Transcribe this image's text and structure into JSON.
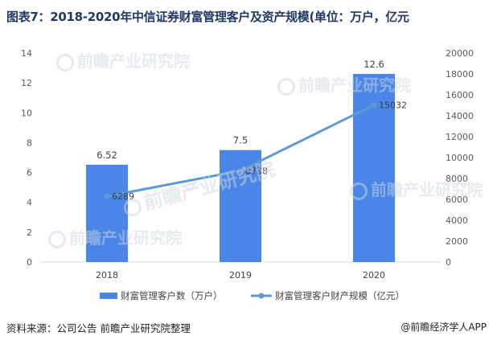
{
  "title": "图表7：2018-2020年中信证券财富管理客户及资产规模(单位：万户，亿元",
  "source": "资料来源：公司公告 前瞻产业研究院整理",
  "brand": "@前瞻经济学人APP",
  "watermark": "前瞻产业研究院",
  "colors": {
    "bar": "#4a86e8",
    "line": "#5b9bd5",
    "title": "#1f3864"
  },
  "chart_data": {
    "type": "bar",
    "categories": [
      "2018",
      "2019",
      "2020"
    ],
    "series": [
      {
        "name": "财富管理客户数（万户）",
        "type": "bar",
        "axis": "left",
        "values": [
          6.52,
          7.5,
          12.6
        ],
        "labels": [
          "6.52",
          "7.5",
          "12.6"
        ]
      },
      {
        "name": "财富管理客户财产规模（亿元）",
        "type": "line",
        "axis": "right",
        "values": [
          6289,
          8738,
          15032
        ],
        "labels": [
          "6289",
          "8738",
          "15032"
        ]
      }
    ],
    "y_left": {
      "min": 0,
      "max": 14,
      "ticks": [
        0,
        2,
        4,
        6,
        8,
        10,
        12,
        14
      ]
    },
    "y_right": {
      "min": 0,
      "max": 20000,
      "ticks": [
        0,
        2000,
        4000,
        6000,
        8000,
        10000,
        12000,
        14000,
        16000,
        18000,
        20000
      ]
    },
    "grid": false,
    "legend": "bottom"
  }
}
